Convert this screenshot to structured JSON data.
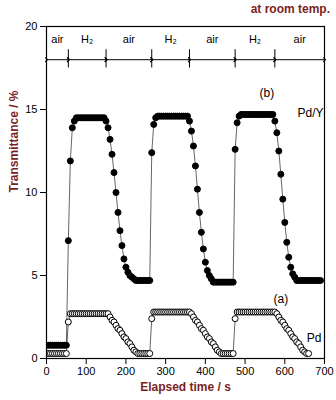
{
  "chart_data": {
    "type": "line",
    "title": "at room temp.",
    "x_label": "Elapsed time / s",
    "y_label": "Transmittance / %",
    "xlim": [
      0,
      700
    ],
    "xticks": [
      0,
      100,
      200,
      300,
      400,
      500,
      600,
      700
    ],
    "ylim": [
      0,
      20
    ],
    "yticks": [
      0,
      5,
      10,
      15,
      20
    ],
    "grid": false,
    "phases": [
      {
        "label": "air",
        "start": 0,
        "end": 55
      },
      {
        "label": "H₂",
        "start": 55,
        "end": 150
      },
      {
        "label": "air",
        "start": 150,
        "end": 265
      },
      {
        "label": "H₂",
        "start": 265,
        "end": 360
      },
      {
        "label": "air",
        "start": 360,
        "end": 475
      },
      {
        "label": "H₂",
        "start": 475,
        "end": 575
      },
      {
        "label": "air",
        "start": 575,
        "end": 700
      }
    ],
    "series": [
      {
        "name": "Pd/Y",
        "tag": "(b)",
        "name_x": 632,
        "name_y": 14.8,
        "tag_x": 555,
        "tag_y": 16.0,
        "color": "#000000",
        "marker": "circle",
        "line_style": "solid",
        "x": [
          0,
          5,
          10,
          15,
          20,
          25,
          30,
          35,
          40,
          45,
          50,
          55,
          60,
          65,
          70,
          75,
          80,
          85,
          90,
          95,
          100,
          105,
          110,
          115,
          120,
          125,
          130,
          135,
          140,
          145,
          150,
          155,
          160,
          165,
          170,
          175,
          180,
          185,
          190,
          195,
          200,
          205,
          210,
          215,
          220,
          225,
          230,
          235,
          240,
          245,
          250,
          255,
          260,
          265,
          270,
          275,
          280,
          285,
          290,
          295,
          300,
          305,
          310,
          315,
          320,
          325,
          330,
          335,
          340,
          345,
          350,
          355,
          360,
          365,
          370,
          375,
          380,
          385,
          390,
          395,
          400,
          405,
          410,
          415,
          420,
          425,
          430,
          435,
          440,
          445,
          450,
          455,
          460,
          465,
          470,
          475,
          480,
          485,
          490,
          495,
          500,
          505,
          510,
          515,
          520,
          525,
          530,
          535,
          540,
          545,
          550,
          555,
          560,
          565,
          570,
          575,
          580,
          585,
          590,
          595,
          600,
          605,
          610,
          615,
          620,
          625,
          630,
          635,
          640,
          645,
          650,
          655,
          660,
          665,
          670,
          675,
          680,
          685,
          690
        ],
        "values": [
          0.8,
          0.8,
          0.8,
          0.8,
          0.8,
          0.8,
          0.8,
          0.8,
          0.8,
          0.8,
          0.8,
          7.1,
          11.9,
          13.9,
          14.3,
          14.5,
          14.5,
          14.5,
          14.5,
          14.5,
          14.5,
          14.5,
          14.5,
          14.5,
          14.5,
          14.5,
          14.5,
          14.5,
          14.5,
          14.5,
          14.3,
          13.9,
          13.2,
          12.3,
          11.2,
          10.0,
          8.8,
          7.7,
          6.8,
          6.0,
          5.5,
          5.2,
          5.0,
          4.9,
          4.8,
          4.7,
          4.7,
          4.7,
          4.7,
          4.7,
          4.7,
          4.7,
          4.7,
          12.4,
          14.1,
          14.5,
          14.6,
          14.6,
          14.6,
          14.6,
          14.6,
          14.6,
          14.6,
          14.6,
          14.6,
          14.6,
          14.6,
          14.6,
          14.6,
          14.6,
          14.6,
          14.6,
          14.3,
          13.7,
          12.8,
          11.6,
          10.2,
          8.8,
          7.6,
          6.6,
          5.8,
          5.3,
          5.0,
          4.8,
          4.6,
          4.6,
          4.6,
          4.6,
          4.6,
          4.6,
          4.6,
          4.6,
          4.6,
          4.6,
          4.6,
          12.6,
          14.2,
          14.6,
          14.7,
          14.7,
          14.7,
          14.7,
          14.7,
          14.7,
          14.7,
          14.7,
          14.7,
          14.7,
          14.7,
          14.7,
          14.7,
          14.7,
          14.7,
          14.7,
          14.7,
          14.3,
          13.6,
          12.5,
          11.1,
          9.6,
          8.2,
          7.0,
          6.1,
          5.5,
          5.1,
          4.9,
          4.7,
          4.7,
          4.7,
          4.7,
          4.7,
          4.7,
          4.7,
          4.7,
          4.7,
          4.7,
          4.7,
          4.7,
          4.7
        ]
      },
      {
        "name": "Pd",
        "tag": "(a)",
        "name_x": 655,
        "name_y": 1.2,
        "tag_x": 590,
        "tag_y": 3.6,
        "color": "#000000",
        "marker": "open circle",
        "line_style": "solid",
        "x": [
          0,
          5,
          10,
          15,
          20,
          25,
          30,
          35,
          40,
          45,
          50,
          55,
          60,
          65,
          70,
          75,
          80,
          85,
          90,
          95,
          100,
          105,
          110,
          115,
          120,
          125,
          130,
          135,
          140,
          145,
          150,
          155,
          160,
          165,
          170,
          175,
          180,
          185,
          190,
          195,
          200,
          205,
          210,
          215,
          220,
          225,
          230,
          235,
          240,
          245,
          250,
          255,
          260,
          265,
          270,
          275,
          280,
          285,
          290,
          295,
          300,
          305,
          310,
          315,
          320,
          325,
          330,
          335,
          340,
          345,
          350,
          355,
          360,
          365,
          370,
          375,
          380,
          385,
          390,
          395,
          400,
          405,
          410,
          415,
          420,
          425,
          430,
          435,
          440,
          445,
          450,
          455,
          460,
          465,
          470,
          475,
          480,
          485,
          490,
          495,
          500,
          505,
          510,
          515,
          520,
          525,
          530,
          535,
          540,
          545,
          550,
          555,
          560,
          565,
          570,
          575,
          580,
          585,
          590,
          595,
          600,
          605,
          610,
          615,
          620,
          625,
          630,
          635,
          640,
          645,
          650,
          655,
          660
        ],
        "values": [
          0.3,
          0.3,
          0.3,
          0.3,
          0.3,
          0.3,
          0.3,
          0.3,
          0.3,
          0.3,
          0.3,
          2.2,
          2.7,
          2.7,
          2.7,
          2.7,
          2.7,
          2.7,
          2.7,
          2.7,
          2.7,
          2.7,
          2.7,
          2.7,
          2.7,
          2.7,
          2.7,
          2.7,
          2.7,
          2.7,
          2.7,
          2.7,
          2.5,
          2.3,
          2.2,
          2.0,
          1.8,
          1.7,
          1.5,
          1.3,
          1.2,
          1.0,
          0.9,
          0.7,
          0.5,
          0.4,
          0.3,
          0.3,
          0.3,
          0.3,
          0.3,
          0.3,
          0.3,
          2.4,
          2.8,
          2.8,
          2.8,
          2.8,
          2.8,
          2.8,
          2.8,
          2.8,
          2.8,
          2.8,
          2.8,
          2.8,
          2.8,
          2.8,
          2.8,
          2.8,
          2.8,
          2.8,
          2.8,
          2.7,
          2.5,
          2.3,
          2.2,
          2.0,
          1.8,
          1.7,
          1.5,
          1.3,
          1.2,
          1.0,
          0.9,
          0.7,
          0.5,
          0.4,
          0.3,
          0.3,
          0.3,
          0.3,
          0.3,
          0.3,
          0.3,
          2.4,
          2.8,
          2.8,
          2.8,
          2.8,
          2.8,
          2.8,
          2.8,
          2.8,
          2.8,
          2.8,
          2.8,
          2.8,
          2.8,
          2.8,
          2.8,
          2.8,
          2.8,
          2.8,
          2.8,
          2.8,
          2.7,
          2.5,
          2.3,
          2.2,
          2.0,
          1.8,
          1.7,
          1.5,
          1.3,
          1.2,
          1.0,
          0.9,
          0.7,
          0.5,
          0.4,
          0.3,
          0.3
        ]
      }
    ]
  }
}
